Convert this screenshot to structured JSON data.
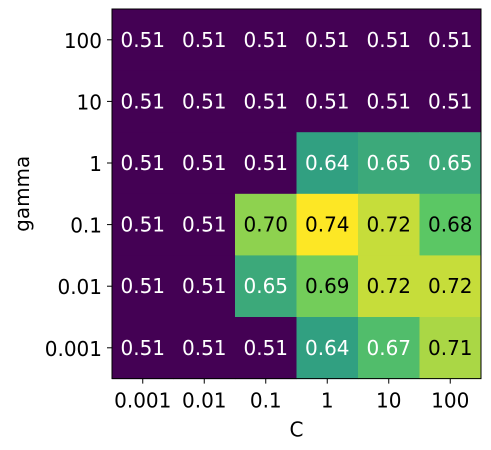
{
  "chart_data": {
    "type": "heatmap",
    "xlabel": "C",
    "ylabel": "gamma",
    "x_categories": [
      "0.001",
      "0.01",
      "0.1",
      "1",
      "10",
      "100"
    ],
    "y_categories": [
      "100",
      "10",
      "1",
      "0.1",
      "0.01",
      "0.001"
    ],
    "values": [
      [
        0.51,
        0.51,
        0.51,
        0.51,
        0.51,
        0.51
      ],
      [
        0.51,
        0.51,
        0.51,
        0.51,
        0.51,
        0.51
      ],
      [
        0.51,
        0.51,
        0.51,
        0.64,
        0.65,
        0.65
      ],
      [
        0.51,
        0.51,
        0.7,
        0.74,
        0.72,
        0.68
      ],
      [
        0.51,
        0.51,
        0.65,
        0.69,
        0.72,
        0.72
      ],
      [
        0.51,
        0.51,
        0.51,
        0.64,
        0.67,
        0.71
      ]
    ],
    "value_labels": [
      [
        "0.51",
        "0.51",
        "0.51",
        "0.51",
        "0.51",
        "0.51"
      ],
      [
        "0.51",
        "0.51",
        "0.51",
        "0.51",
        "0.51",
        "0.51"
      ],
      [
        "0.51",
        "0.51",
        "0.51",
        "0.64",
        "0.65",
        "0.65"
      ],
      [
        "0.51",
        "0.51",
        "0.70",
        "0.74",
        "0.72",
        "0.68"
      ],
      [
        "0.51",
        "0.51",
        "0.65",
        "0.69",
        "0.72",
        "0.72"
      ],
      [
        "0.51",
        "0.51",
        "0.51",
        "0.64",
        "0.67",
        "0.71"
      ]
    ],
    "colormap": "viridis",
    "colorbar": false,
    "grid": false
  }
}
